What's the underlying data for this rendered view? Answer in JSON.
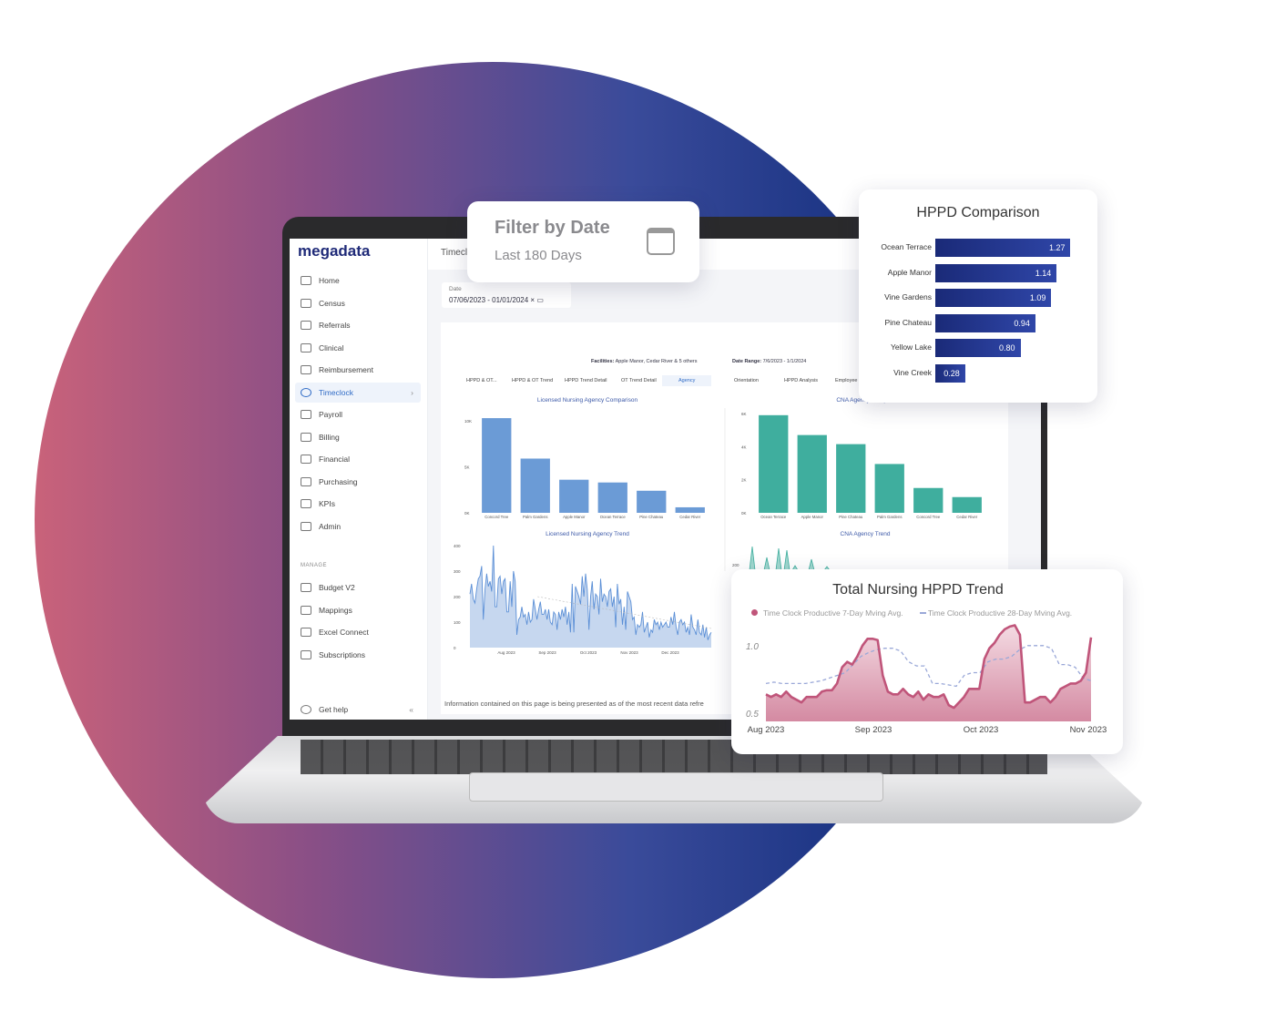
{
  "app": {
    "logo": "megadata",
    "page_title": "Timeclock"
  },
  "sidebar": {
    "items": [
      {
        "label": "Home",
        "icon": "home-icon"
      },
      {
        "label": "Census",
        "icon": "people-icon"
      },
      {
        "label": "Referrals",
        "icon": "referral-icon"
      },
      {
        "label": "Clinical",
        "icon": "clipboard-icon"
      },
      {
        "label": "Reimbursement",
        "icon": "camera-icon"
      },
      {
        "label": "Timeclock",
        "icon": "clock-icon",
        "active": true
      },
      {
        "label": "Payroll",
        "icon": "dollar-icon"
      },
      {
        "label": "Billing",
        "icon": "hand-icon"
      },
      {
        "label": "Financial",
        "icon": "document-icon"
      },
      {
        "label": "Purchasing",
        "icon": "cart-icon"
      },
      {
        "label": "KPIs",
        "icon": "list-icon"
      },
      {
        "label": "Admin",
        "icon": "user-gear-icon"
      }
    ],
    "manage_label": "MANAGE",
    "manage_items": [
      {
        "label": "Budget V2"
      },
      {
        "label": "Mappings"
      },
      {
        "label": "Excel Connect"
      },
      {
        "label": "Subscriptions"
      }
    ],
    "help": "Get help"
  },
  "date_filter": {
    "label": "Date",
    "value": "07/06/2023 - 01/01/2024"
  },
  "report": {
    "facilities_label": "Facilities:",
    "facilities": "Apple Manor, Cedar River & 5 others",
    "range_label": "Date Range:",
    "range": "7/6/2023 - 1/1/2024",
    "tabs": [
      "HPPD & OT...",
      "HPPD & OT Trend",
      "HPPD Trend Detail",
      "OT Trend Detail",
      "Agency",
      "Orientation",
      "HPPD Analysis",
      "Employee"
    ],
    "active_tab": "Agency",
    "footer": "Information contained on this page is being presented as of the most recent data refre"
  },
  "filter_card": {
    "title": "Filter by Date",
    "value": "Last 180 Days"
  },
  "chart_data": [
    {
      "type": "bar",
      "title": "Licensed Nursing Agency Comparison",
      "categories": [
        "Concord Tree",
        "Palm Gardens",
        "Apple Manor",
        "Ocean Terrace",
        "Pine Chateau",
        "Cedar River"
      ],
      "values": [
        10300,
        5900,
        3600,
        3300,
        2400,
        600
      ],
      "yticks": [
        "0K",
        "5K",
        "10K"
      ],
      "ylim": [
        0,
        11000
      ],
      "color": "#6b9bd6"
    },
    {
      "type": "bar",
      "title": "CNA Agency Comparison",
      "categories": [
        "Ocean Terrace",
        "Apple Manor",
        "Pine Chateau",
        "Palm Gardens",
        "Concord Tree",
        "Cedar River"
      ],
      "values": [
        5900,
        4700,
        4150,
        2950,
        1500,
        950
      ],
      "yticks": [
        "0K",
        "2K",
        "4K",
        "6K"
      ],
      "ylim": [
        0,
        6000
      ],
      "color": "#3fae9e"
    },
    {
      "type": "area",
      "title": "Licensed Nursing Agency Trend",
      "xticks": [
        "Aug 2023",
        "Sep 2023",
        "Oct 2023",
        "Nov 2023",
        "Dec 2023"
      ],
      "yticks": [
        "0",
        "100",
        "200",
        "300",
        "400"
      ],
      "ylim": [
        0,
        400
      ],
      "color": "#5b8fd6",
      "trend": [
        200,
        75
      ],
      "values": [
        210,
        250,
        190,
        175,
        230,
        270,
        280,
        320,
        110,
        230,
        290,
        240,
        260,
        220,
        400,
        160,
        160,
        270,
        280,
        210,
        260,
        270,
        140,
        140,
        260,
        160,
        300,
        260,
        50,
        110,
        120,
        160,
        120,
        130,
        90,
        140,
        100,
        110,
        190,
        150,
        110,
        150,
        180,
        130,
        130,
        150,
        110,
        150,
        100,
        90,
        140,
        130,
        70,
        140,
        110,
        150,
        120,
        160,
        90,
        140,
        60,
        250,
        60,
        240,
        220,
        200,
        170,
        280,
        200,
        290,
        230,
        70,
        200,
        260,
        150,
        210,
        200,
        130,
        270,
        180,
        210,
        200,
        160,
        220,
        230,
        160,
        200,
        80,
        250,
        170,
        190,
        90,
        160,
        70,
        220,
        200,
        180,
        110,
        120,
        50,
        90,
        80,
        90,
        140,
        60,
        80,
        100,
        40,
        70,
        60,
        110,
        90,
        100,
        70,
        100,
        80,
        90,
        100,
        80,
        80,
        120,
        90,
        140,
        80,
        50,
        100,
        110,
        90,
        100,
        60,
        80,
        50,
        130,
        80,
        70,
        50,
        110,
        60,
        50,
        90,
        40,
        80,
        30,
        50,
        60
      ]
    },
    {
      "type": "area",
      "title": "CNA Agency Trend",
      "yticks": [
        "200"
      ],
      "color": "#3fae9e"
    },
    {
      "type": "bar",
      "orientation": "horizontal",
      "title": "HPPD Comparison",
      "categories": [
        "Ocean Terrace",
        "Apple Manor",
        "Vine Gardens",
        "Pine Chateau",
        "Yellow Lake",
        "Vine Creek"
      ],
      "values": [
        1.27,
        1.14,
        1.09,
        0.94,
        0.8,
        0.28
      ],
      "labels": [
        "1.27",
        "1.14",
        "1.09",
        "0.94",
        "0.80",
        "0.28"
      ],
      "xlim": [
        0,
        1.3
      ],
      "color": "#1f2f86"
    },
    {
      "type": "line",
      "title": "Total Nursing HPPD Trend",
      "xticks": [
        "Aug 2023",
        "Sep 2023",
        "Oct 2023",
        "Nov 2023"
      ],
      "yticks": [
        "0.5",
        "1.0"
      ],
      "ylim": [
        0.44,
        1.18
      ],
      "series": [
        {
          "name": "Time Clock Productive 7-Day Mving Avg.",
          "color": "#c0557a",
          "values": [
            0.64,
            0.62,
            0.64,
            0.62,
            0.66,
            0.62,
            0.6,
            0.58,
            0.62,
            0.62,
            0.62,
            0.66,
            0.67,
            0.67,
            0.72,
            0.84,
            0.88,
            0.86,
            0.92,
            1.0,
            1.05,
            1.05,
            1.04,
            0.78,
            0.66,
            0.64,
            0.64,
            0.68,
            0.64,
            0.62,
            0.66,
            0.6,
            0.64,
            0.62,
            0.62,
            0.64,
            0.56,
            0.54,
            0.58,
            0.62,
            0.68,
            0.68,
            0.68,
            0.9,
            0.98,
            1.02,
            1.08,
            1.12,
            1.14,
            1.15,
            1.08,
            0.58,
            0.58,
            0.6,
            0.62,
            0.62,
            0.58,
            0.62,
            0.68,
            0.7,
            0.72,
            0.72,
            0.74,
            0.8,
            1.06
          ]
        },
        {
          "name": "Time Clock Productive 28-Day Mving Avg.",
          "color": "#9aa8d8",
          "values": [
            0.72,
            0.73,
            0.72,
            0.72,
            0.72,
            0.72,
            0.73,
            0.74,
            0.76,
            0.78,
            0.8,
            0.86,
            0.92,
            0.95,
            0.97,
            0.98,
            0.98,
            0.96,
            0.88,
            0.85,
            0.85,
            0.72,
            0.72,
            0.71,
            0.7,
            0.78,
            0.8,
            0.8,
            0.88,
            0.9,
            0.9,
            0.92,
            0.97,
            1.0,
            1.0,
            1.0,
            0.98,
            0.86,
            0.86,
            0.84,
            0.76,
            0.74
          ]
        }
      ]
    }
  ]
}
